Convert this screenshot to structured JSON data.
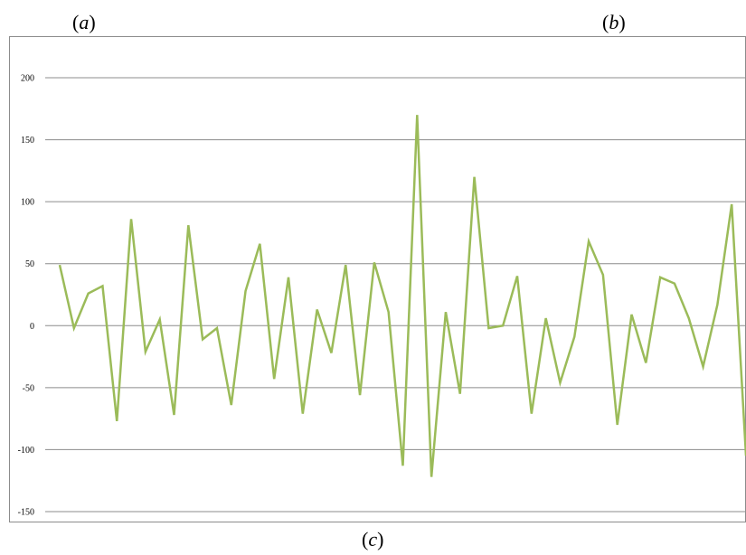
{
  "panel_labels": {
    "a": "a",
    "b": "b",
    "c": "c"
  },
  "chart_data": {
    "type": "line",
    "title": "",
    "xlabel": "",
    "ylabel": "",
    "ylim": [
      -150,
      200
    ],
    "yticks": [
      200,
      150,
      100,
      50,
      0,
      -50,
      -100,
      -150
    ],
    "grid": true,
    "legend": "none",
    "series": [
      {
        "color": "#9bbb59",
        "values": [
          49,
          -2,
          26,
          32,
          -77,
          86,
          -21,
          5,
          -72,
          81,
          -11,
          -2,
          -64,
          28,
          66,
          -43,
          39,
          -71,
          13,
          -22,
          49,
          -56,
          51,
          11,
          -113,
          170,
          -122,
          11,
          -55,
          120,
          -2,
          0,
          40,
          -71,
          6,
          -46,
          -9,
          68,
          41,
          -80,
          9,
          -30,
          39,
          34,
          6,
          -33,
          17,
          98,
          -105
        ]
      }
    ]
  }
}
